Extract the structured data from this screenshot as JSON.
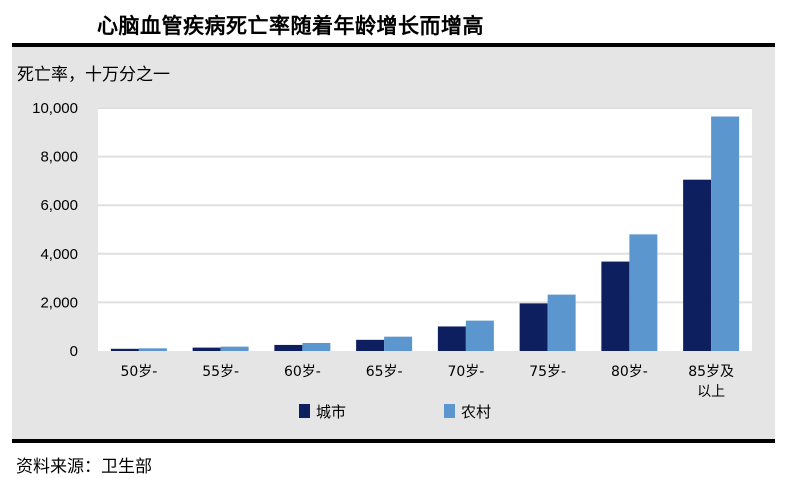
{
  "title": "心脑血管疾病死亡率随着年龄增长而增高",
  "source": "资料来源：卫生部",
  "colors": {
    "urban": "#0d1f5e",
    "rural": "#5b96cf",
    "panel": "#e5e5e5",
    "plot": "#ffffff",
    "grid": "#e0e0e0"
  },
  "chart_data": {
    "type": "bar",
    "title": "心脑血管疾病死亡率随着年龄增长而增高",
    "ylabel": "死亡率，十万分之一",
    "xlabel": "",
    "ylim": [
      0,
      10000
    ],
    "yticks": [
      0,
      2000,
      4000,
      6000,
      8000,
      10000
    ],
    "ytick_labels": [
      "0",
      "2,000",
      "4,000",
      "6,000",
      "8,000",
      "10,000"
    ],
    "categories": [
      "50岁-",
      "55岁-",
      "60岁-",
      "65岁-",
      "70岁-",
      "75岁-",
      "80岁-",
      "85岁及以上"
    ],
    "category_lines": [
      [
        "50岁-"
      ],
      [
        "55岁-"
      ],
      [
        "60岁-"
      ],
      [
        "65岁-"
      ],
      [
        "70岁-"
      ],
      [
        "75岁-"
      ],
      [
        "80岁-"
      ],
      [
        "85岁及",
        "以上"
      ]
    ],
    "series": [
      {
        "name": "城市",
        "values": [
          90,
          140,
          250,
          460,
          1010,
          1960,
          3680,
          7050
        ]
      },
      {
        "name": "农村",
        "values": [
          110,
          180,
          330,
          590,
          1250,
          2320,
          4800,
          9650
        ]
      }
    ],
    "grid": true,
    "legend_position": "bottom"
  }
}
